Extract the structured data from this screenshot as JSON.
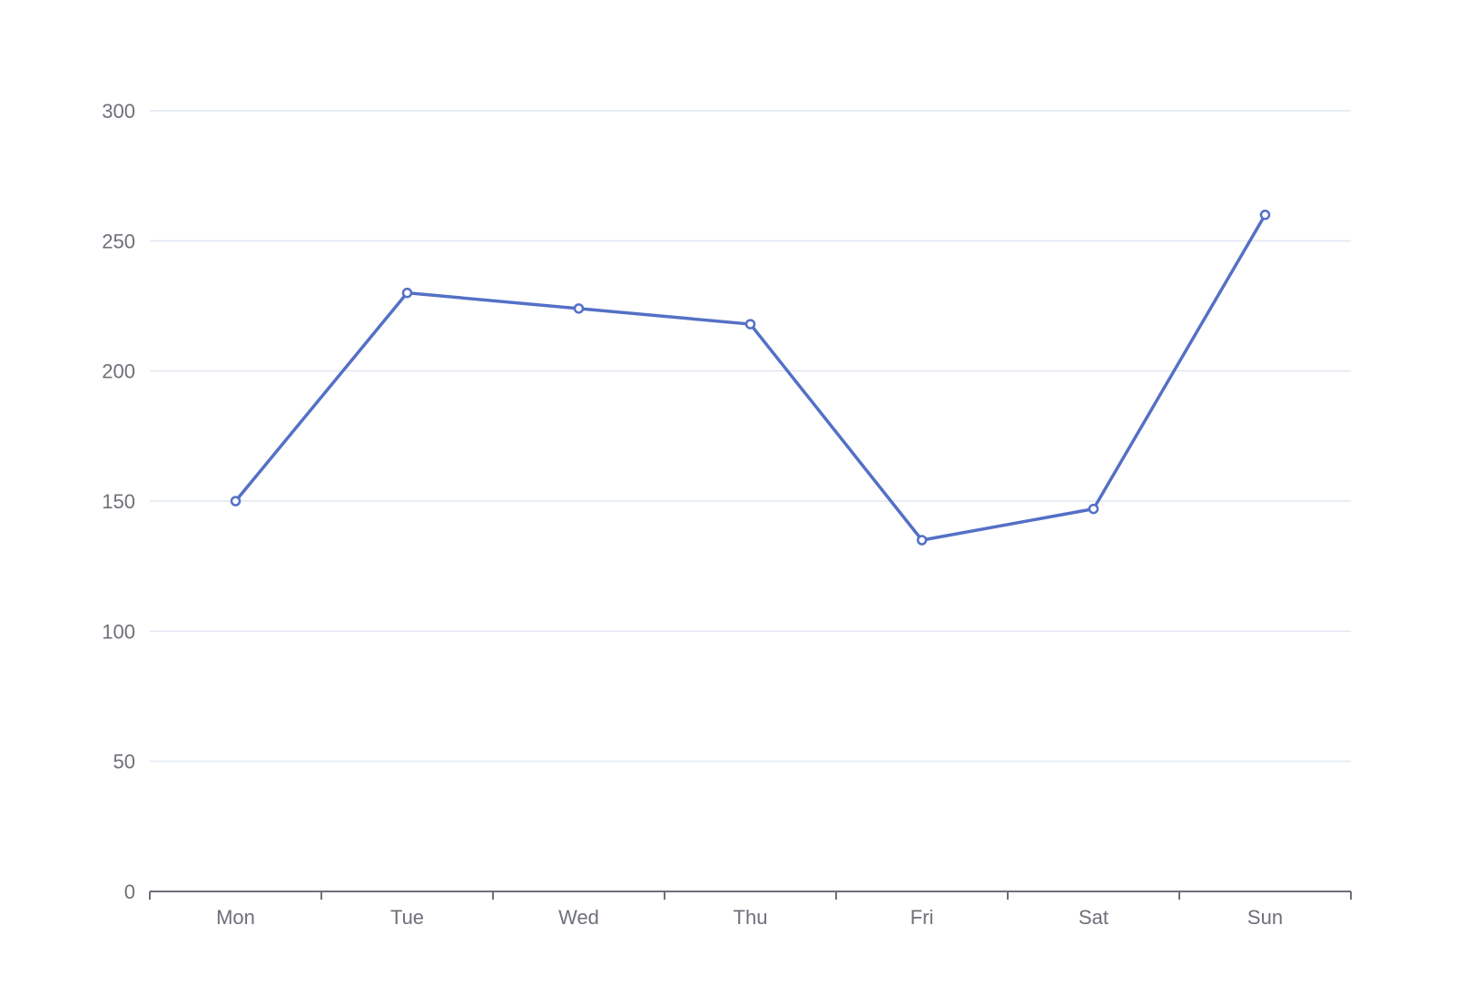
{
  "chart_data": {
    "type": "line",
    "categories": [
      "Mon",
      "Tue",
      "Wed",
      "Thu",
      "Fri",
      "Sat",
      "Sun"
    ],
    "series": [
      {
        "values": [
          150,
          230,
          224,
          218,
          135,
          147,
          260
        ]
      }
    ],
    "ylim": [
      0,
      300
    ],
    "yticks": [
      0,
      50,
      100,
      150,
      200,
      250,
      300
    ],
    "grid": true,
    "legend": "none",
    "colors": {
      "series": "#5470c6",
      "grid": "#e0e6f1",
      "axis": "#6e7079",
      "label": "#6e7079"
    }
  }
}
